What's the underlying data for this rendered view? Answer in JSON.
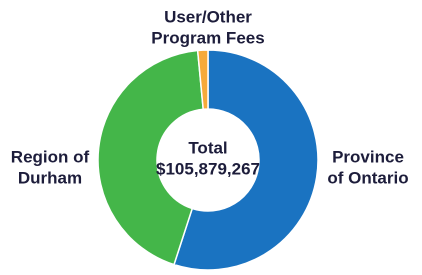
{
  "chart_data": {
    "type": "donut",
    "categories": [
      [
        "Province",
        "of Ontario"
      ],
      [
        "Region of",
        "Durham"
      ],
      [
        "User/Other",
        "Program Fees"
      ]
    ],
    "values": [
      55,
      43.5,
      1.5
    ],
    "colors": [
      "#1a73c1",
      "#44b649",
      "#f6aa3a"
    ],
    "center_label": [
      "Total",
      "$105,879,267"
    ]
  }
}
